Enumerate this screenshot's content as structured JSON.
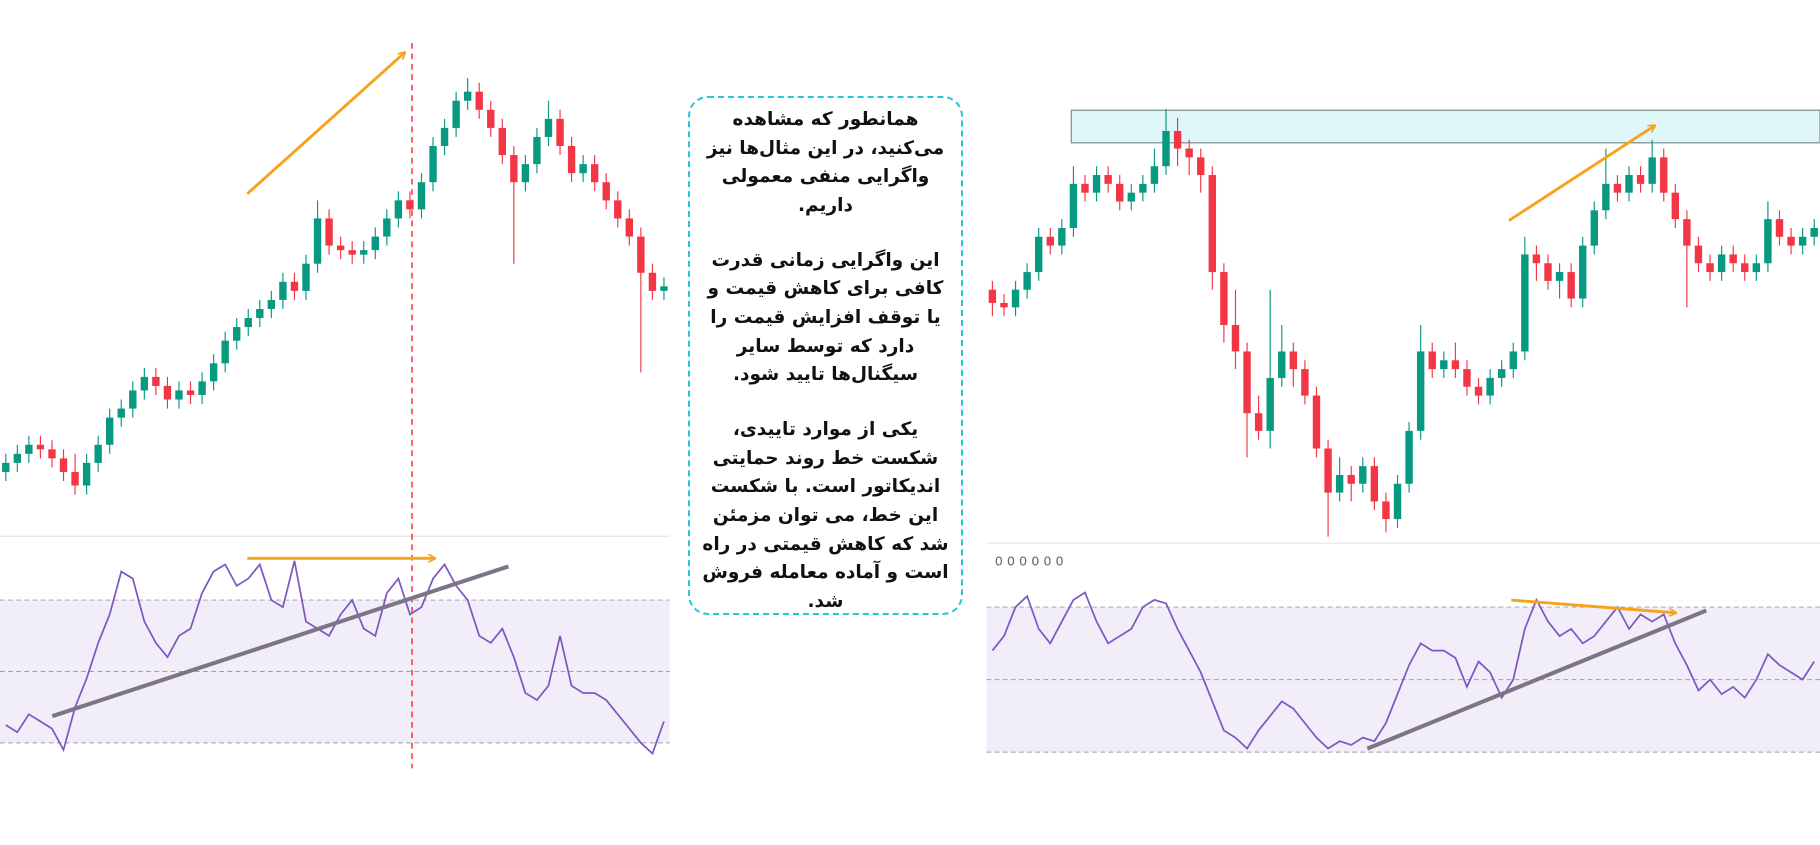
{
  "chart_data": [
    {
      "type": "candlestick",
      "up_color": "#089981",
      "down_color": "#f23645",
      "ylim": [
        0,
        100
      ],
      "open": [
        6,
        8,
        10,
        12,
        11,
        9,
        6,
        3,
        8,
        12,
        18,
        20,
        24,
        27,
        25,
        22,
        24,
        23,
        26,
        30,
        35,
        38,
        40,
        42,
        44,
        48,
        46,
        52,
        62,
        56,
        55,
        54,
        55,
        58,
        62,
        66,
        64,
        70,
        78,
        82,
        88,
        90,
        86,
        82,
        76,
        70,
        74,
        80,
        84,
        78,
        72,
        74,
        70,
        66,
        62,
        58,
        50,
        46
      ],
      "high": [
        10,
        12,
        14,
        14,
        13,
        11,
        10,
        10,
        14,
        20,
        22,
        26,
        29,
        29,
        27,
        26,
        26,
        28,
        32,
        37,
        40,
        42,
        44,
        46,
        50,
        50,
        54,
        66,
        64,
        58,
        57,
        57,
        60,
        64,
        68,
        68,
        72,
        80,
        84,
        90,
        93,
        92,
        88,
        84,
        78,
        76,
        82,
        88,
        86,
        80,
        76,
        76,
        72,
        68,
        64,
        60,
        52,
        49
      ],
      "low": [
        4,
        6,
        8,
        9,
        7,
        4,
        1,
        1,
        6,
        10,
        16,
        18,
        22,
        23,
        20,
        20,
        21,
        21,
        24,
        28,
        33,
        36,
        38,
        40,
        42,
        44,
        44,
        50,
        54,
        53,
        52,
        52,
        53,
        56,
        60,
        62,
        62,
        68,
        76,
        80,
        86,
        84,
        80,
        74,
        52,
        68,
        72,
        78,
        76,
        70,
        70,
        68,
        64,
        60,
        56,
        28,
        44,
        44
      ],
      "close": [
        8,
        10,
        12,
        11,
        9,
        6,
        3,
        8,
        12,
        18,
        20,
        24,
        27,
        25,
        22,
        24,
        23,
        26,
        30,
        35,
        38,
        40,
        42,
        44,
        48,
        46,
        52,
        62,
        56,
        55,
        54,
        55,
        58,
        62,
        66,
        64,
        70,
        78,
        82,
        88,
        90,
        86,
        82,
        76,
        70,
        74,
        80,
        84,
        78,
        72,
        74,
        70,
        66,
        62,
        58,
        50,
        46,
        47
      ]
    },
    {
      "type": "line",
      "color": "#7e57c2",
      "ylim": [
        20,
        90
      ],
      "reference_lines": [
        70,
        50,
        30
      ],
      "values": [
        35,
        33,
        38,
        36,
        34,
        28,
        40,
        48,
        58,
        66,
        78,
        76,
        64,
        58,
        54,
        60,
        62,
        72,
        78,
        80,
        74,
        76,
        80,
        70,
        68,
        81,
        64,
        62,
        60,
        66,
        70,
        62,
        60,
        72,
        76,
        66,
        68,
        76,
        80,
        74,
        70,
        60,
        58,
        62,
        54,
        44,
        42,
        46,
        60,
        46,
        44,
        44,
        42,
        38,
        34,
        30,
        27,
        36
      ]
    },
    {
      "type": "candlestick",
      "up_color": "#089981",
      "down_color": "#f23645",
      "ylim": [
        0,
        100
      ],
      "open": [
        58,
        55,
        54,
        58,
        62,
        70,
        68,
        72,
        82,
        80,
        84,
        82,
        78,
        80,
        82,
        86,
        94,
        90,
        88,
        84,
        62,
        50,
        44,
        30,
        26,
        38,
        44,
        40,
        34,
        22,
        12,
        16,
        14,
        18,
        10,
        6,
        14,
        26,
        44,
        40,
        42,
        40,
        36,
        34,
        38,
        40,
        44,
        66,
        64,
        60,
        62,
        56,
        68,
        76,
        82,
        80,
        84,
        82,
        88,
        80,
        74,
        68,
        64,
        62,
        66,
        64,
        62,
        64,
        74,
        70,
        68,
        70
      ],
      "high": [
        60,
        57,
        60,
        64,
        72,
        72,
        74,
        86,
        84,
        86,
        86,
        84,
        82,
        84,
        90,
        99,
        97,
        92,
        90,
        86,
        64,
        58,
        46,
        34,
        58,
        50,
        46,
        42,
        36,
        24,
        20,
        18,
        20,
        20,
        12,
        16,
        28,
        50,
        46,
        44,
        46,
        42,
        38,
        40,
        42,
        46,
        70,
        68,
        66,
        64,
        64,
        70,
        78,
        90,
        84,
        86,
        86,
        92,
        90,
        82,
        76,
        70,
        66,
        68,
        68,
        66,
        66,
        78,
        76,
        72,
        72,
        74
      ],
      "low": [
        52,
        52,
        52,
        56,
        60,
        66,
        66,
        70,
        78,
        78,
        80,
        76,
        76,
        78,
        80,
        84,
        86,
        84,
        80,
        58,
        46,
        40,
        20,
        24,
        22,
        36,
        36,
        32,
        20,
        2,
        10,
        10,
        12,
        8,
        3,
        4,
        12,
        24,
        38,
        38,
        38,
        34,
        32,
        32,
        36,
        38,
        42,
        60,
        58,
        56,
        54,
        54,
        66,
        74,
        78,
        78,
        80,
        80,
        78,
        72,
        54,
        62,
        60,
        60,
        62,
        60,
        60,
        62,
        68,
        66,
        66,
        68
      ],
      "close": [
        55,
        54,
        58,
        62,
        70,
        68,
        72,
        82,
        80,
        84,
        82,
        78,
        80,
        82,
        86,
        94,
        90,
        88,
        84,
        62,
        50,
        44,
        30,
        26,
        38,
        44,
        40,
        34,
        22,
        12,
        16,
        14,
        18,
        10,
        6,
        14,
        26,
        44,
        40,
        42,
        40,
        36,
        34,
        38,
        40,
        44,
        66,
        64,
        60,
        62,
        56,
        68,
        76,
        82,
        80,
        84,
        82,
        88,
        80,
        74,
        68,
        64,
        62,
        66,
        64,
        62,
        64,
        74,
        70,
        68,
        70,
        72
      ]
    },
    {
      "type": "line",
      "color": "#7e57c2",
      "ylim": [
        20,
        90
      ],
      "reference_lines": [
        70,
        50,
        30
      ],
      "label": "0 0 0 0 0 0",
      "values": [
        58,
        62,
        70,
        73,
        64,
        60,
        66,
        72,
        74,
        66,
        60,
        62,
        64,
        70,
        72,
        71,
        64,
        58,
        52,
        44,
        36,
        34,
        31,
        36,
        40,
        44,
        42,
        38,
        34,
        31,
        33,
        32,
        34,
        33,
        38,
        46,
        54,
        60,
        58,
        58,
        56,
        48,
        55,
        52,
        45,
        50,
        64,
        72,
        66,
        62,
        64,
        60,
        62,
        66,
        70,
        64,
        68,
        66,
        68,
        60,
        54,
        47,
        50,
        46,
        48,
        45,
        50,
        57,
        54,
        52,
        50,
        55
      ]
    }
  ],
  "text_box": {
    "paragraphs": [
      "همانطور که مشاهده می‌کنید، در این مثال‌ها نیز واگرایی منفی معمولی داریم.",
      "این واگرایی زمانی قدرت کافی برای کاهش قیمت و یا توقف افزایش قیمت را دارد که توسط سایر سیگنال‌ها تایید شود.",
      "یکی از موارد تاییدی، شکست خط روند حمایتی اندیکاتور است. با شکست این خط، می توان مزمئن شد که کاهش قیمتی در راه است و آماده معامله فروش شد."
    ]
  }
}
